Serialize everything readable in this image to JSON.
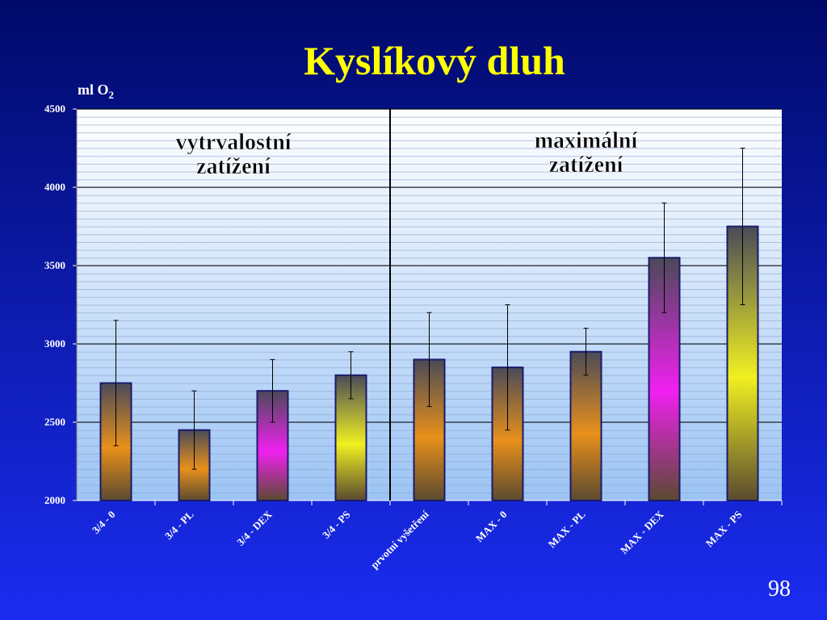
{
  "chart_data": {
    "type": "bar",
    "title": "Kyslíkový dluh",
    "y_label": {
      "text": "ml O",
      "subscript": "2"
    },
    "categories": [
      "3/4 - 0",
      "3/4 - PL",
      "3/4 - DEX",
      "3/4 - PS",
      "prvotní vyšetření",
      "MAX - 0",
      "MAX - PL",
      "MAX - DEX",
      "MAX - PS"
    ],
    "values": [
      2750,
      2450,
      2700,
      2800,
      2900,
      2850,
      2950,
      3550,
      3750
    ],
    "errors": [
      400,
      250,
      200,
      150,
      300,
      400,
      150,
      350,
      500
    ],
    "colors": [
      "#e8901a",
      "#e8901a",
      "#f020f0",
      "#f0f020",
      "#e8901a",
      "#e8901a",
      "#e8901a",
      "#f020f0",
      "#f0f020"
    ],
    "ylim": [
      2000,
      4500
    ],
    "yticks": [
      2000,
      2500,
      3000,
      3500,
      4000,
      4500
    ],
    "grid": true,
    "annotations": [
      [
        "vytrvalostní",
        "zatížení"
      ],
      [
        "maximální",
        "zatížení"
      ]
    ],
    "page_number": "98"
  }
}
